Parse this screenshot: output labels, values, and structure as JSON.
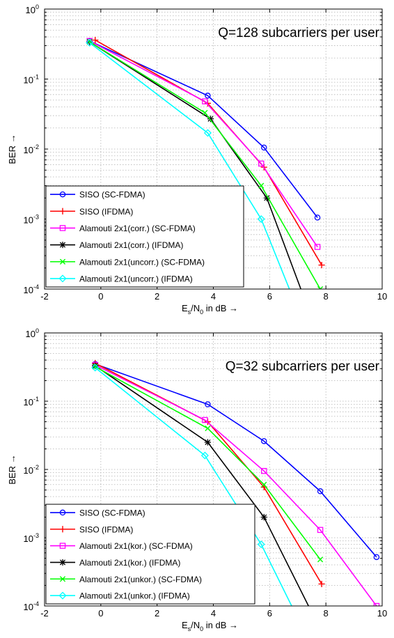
{
  "chart_data": [
    {
      "type": "line",
      "title": "",
      "annotation": "Q=128 subcarriers per user",
      "xlabel_main": "E",
      "xlabel_sub1": "s",
      "xlabel_mid": "/N",
      "xlabel_sub2": "0",
      "xlabel_tail": " in dB →",
      "ylabel": "BER →",
      "xlim": [
        -2,
        10
      ],
      "ylim": [
        0.0001,
        1
      ],
      "yscale": "log",
      "grid": true,
      "legend_position": "bottom-left",
      "x_ticks": [
        "-2",
        "0",
        "2",
        "4",
        "6",
        "8",
        "10"
      ],
      "y_tick_exponents": [
        "-4",
        "-3",
        "-2",
        "-1",
        "0"
      ],
      "series": [
        {
          "name": "SISO (SC-FDMA)",
          "color": "#0000ff",
          "marker": "circle",
          "x": [
            -0.4,
            3.8,
            5.8,
            7.7
          ],
          "y": [
            0.35,
            0.058,
            0.0105,
            0.00105
          ]
        },
        {
          "name": "SISO (IFDMA)",
          "color": "#ff0000",
          "marker": "plus",
          "x": [
            -0.2,
            3.8,
            5.8,
            7.85
          ],
          "y": [
            0.36,
            0.045,
            0.0055,
            0.00022
          ]
        },
        {
          "name": "Alamouti 2x1(corr.) (SC-FDMA)",
          "color": "#ff00ff",
          "marker": "square",
          "x": [
            -0.4,
            3.7,
            5.7,
            7.7
          ],
          "y": [
            0.35,
            0.048,
            0.0062,
            0.0004
          ]
        },
        {
          "name": "Alamouti 2x1(corr.) (IFDMA)",
          "color": "#000000",
          "marker": "star",
          "x": [
            -0.4,
            3.9,
            5.9,
            7.2
          ],
          "y": [
            0.34,
            0.027,
            0.002,
            8e-05
          ]
        },
        {
          "name": "Alamouti 2x1(uncorr.) (SC-FDMA)",
          "color": "#00ff00",
          "marker": "x",
          "x": [
            -0.4,
            3.7,
            5.7,
            7.8
          ],
          "y": [
            0.34,
            0.033,
            0.003,
            0.0001
          ]
        },
        {
          "name": "Alamouti 2x1(uncorr.) (IFDMA)",
          "color": "#00ffff",
          "marker": "diamond",
          "x": [
            -0.4,
            3.8,
            5.7,
            6.8
          ],
          "y": [
            0.33,
            0.017,
            0.001,
            8e-05
          ]
        }
      ]
    },
    {
      "type": "line",
      "title": "",
      "annotation": "Q=32 subcarriers per user",
      "xlabel_main": "E",
      "xlabel_sub1": "s",
      "xlabel_mid": "/N",
      "xlabel_sub2": "0",
      "xlabel_tail": " in dB →",
      "ylabel": "BER →",
      "xlim": [
        -2,
        10
      ],
      "ylim": [
        0.0001,
        1
      ],
      "yscale": "log",
      "grid": true,
      "legend_position": "bottom-left",
      "x_ticks": [
        "-2",
        "0",
        "2",
        "4",
        "6",
        "8",
        "10"
      ],
      "y_tick_exponents": [
        "-4",
        "-3",
        "-2",
        "-1",
        "0"
      ],
      "series": [
        {
          "name": "SISO (SC-FDMA)",
          "color": "#0000ff",
          "marker": "circle",
          "x": [
            -0.2,
            3.8,
            5.8,
            7.8,
            9.8
          ],
          "y": [
            0.35,
            0.09,
            0.026,
            0.0048,
            0.00052
          ]
        },
        {
          "name": "SISO (IFDMA)",
          "color": "#ff0000",
          "marker": "plus",
          "x": [
            -0.2,
            3.8,
            5.8,
            7.85
          ],
          "y": [
            0.36,
            0.05,
            0.0055,
            0.00021
          ]
        },
        {
          "name": "Alamouti 2x1(kor.) (SC-FDMA)",
          "color": "#ff00ff",
          "marker": "square",
          "x": [
            -0.2,
            3.7,
            5.8,
            7.8,
            9.8
          ],
          "y": [
            0.34,
            0.053,
            0.0095,
            0.0013,
            0.0001
          ]
        },
        {
          "name": "Alamouti 2x1(kor.) (IFDMA)",
          "color": "#000000",
          "marker": "star",
          "x": [
            -0.2,
            3.8,
            5.8,
            7.5
          ],
          "y": [
            0.33,
            0.025,
            0.002,
            8e-05
          ]
        },
        {
          "name": "Alamouti 2x1(unkor.) (SC-FDMA)",
          "color": "#00ff00",
          "marker": "x",
          "x": [
            -0.2,
            3.8,
            5.8,
            7.8
          ],
          "y": [
            0.32,
            0.04,
            0.006,
            0.00048
          ]
        },
        {
          "name": "Alamouti 2x1(unkor.) (IFDMA)",
          "color": "#00ffff",
          "marker": "diamond",
          "x": [
            -0.2,
            3.7,
            5.7,
            6.9
          ],
          "y": [
            0.31,
            0.016,
            0.0008,
            8e-05
          ]
        }
      ]
    }
  ]
}
